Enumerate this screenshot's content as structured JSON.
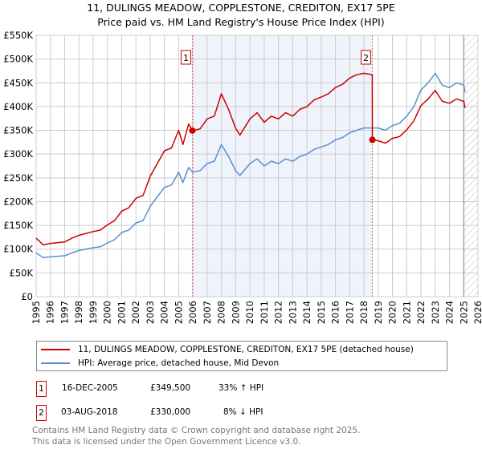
{
  "title": "11, DULINGS MEADOW, COPPLESTONE, CREDITON, EX17 5PE",
  "subtitle": "Price paid vs. HM Land Registry's House Price Index (HPI)",
  "colors": {
    "property": "#cc0000",
    "hpi": "#5b8fd0",
    "shade": "#eef3fc",
    "grid": "#cccccc",
    "marker_line": "#e06060"
  },
  "chart_data": {
    "type": "line",
    "title": "11, DULINGS MEADOW, COPPLESTONE, CREDITON, EX17 5PE",
    "xlabel": "",
    "ylabel": "",
    "xlim": [
      1995,
      2026
    ],
    "ylim": [
      0,
      550000
    ],
    "grid": true,
    "yticks": [
      0,
      50000,
      100000,
      150000,
      200000,
      250000,
      300000,
      350000,
      400000,
      450000,
      500000,
      550000
    ],
    "ytick_labels": [
      "£0",
      "£50K",
      "£100K",
      "£150K",
      "£200K",
      "£250K",
      "£300K",
      "£350K",
      "£400K",
      "£450K",
      "£500K",
      "£550K"
    ],
    "xticks": [
      1995,
      1996,
      1997,
      1998,
      1999,
      2000,
      2001,
      2002,
      2003,
      2004,
      2005,
      2006,
      2007,
      2008,
      2009,
      2010,
      2011,
      2012,
      2013,
      2014,
      2015,
      2016,
      2017,
      2018,
      2019,
      2020,
      2021,
      2022,
      2023,
      2024,
      2025,
      2026
    ],
    "shaded_period": [
      2005.96,
      2018.59
    ],
    "forecast_hatch_from": 2025.0,
    "series": [
      {
        "name": "11, DULINGS MEADOW, COPPLESTONE, CREDITON, EX17 5PE (detached house)",
        "color": "#cc0000",
        "x": [
          1995,
          1995.5,
          1996,
          1997,
          1997.5,
          1998,
          1999,
          1999.5,
          2000,
          2000.5,
          2001,
          2001.5,
          2002,
          2002.5,
          2003,
          2003.5,
          2004,
          2004.5,
          2005,
          2005.3,
          2005.7,
          2005.96,
          2006.5,
          2007,
          2007.5,
          2008,
          2008.5,
          2009,
          2009.3,
          2010,
          2010.5,
          2011,
          2011.5,
          2012,
          2012.5,
          2013,
          2013.5,
          2014,
          2014.5,
          2015,
          2015.5,
          2016,
          2016.5,
          2017,
          2017.5,
          2018,
          2018.58,
          2018.59,
          2019,
          2019.5,
          2020,
          2020.5,
          2021,
          2021.5,
          2022,
          2022.5,
          2023,
          2023.5,
          2024,
          2024.5,
          2025,
          2025.1
        ],
        "y": [
          123000,
          109000,
          112000,
          115000,
          123000,
          129000,
          137000,
          140000,
          151000,
          160000,
          180000,
          187000,
          207000,
          213000,
          253000,
          280000,
          307000,
          313000,
          350000,
          320000,
          363000,
          349500,
          353000,
          374000,
          380000,
          427000,
          394000,
          354000,
          340000,
          374000,
          387000,
          367000,
          380000,
          374000,
          387000,
          380000,
          394000,
          400000,
          414000,
          420000,
          427000,
          440000,
          447000,
          460000,
          467000,
          470000,
          467000,
          330000,
          328000,
          323000,
          333000,
          337000,
          351000,
          370000,
          402000,
          416000,
          434000,
          411000,
          407000,
          416000,
          411000,
          397000
        ]
      },
      {
        "name": "HPI: Average price, detached house, Mid Devon",
        "color": "#5b8fd0",
        "x": [
          1995,
          1995.5,
          1996,
          1997,
          1997.5,
          1998,
          1999,
          1999.5,
          2000,
          2000.5,
          2001,
          2001.5,
          2002,
          2002.5,
          2003,
          2003.5,
          2004,
          2004.5,
          2005,
          2005.3,
          2005.7,
          2005.96,
          2006.5,
          2007,
          2007.5,
          2008,
          2008.5,
          2009,
          2009.3,
          2010,
          2010.5,
          2011,
          2011.5,
          2012,
          2012.5,
          2013,
          2013.5,
          2014,
          2014.5,
          2015,
          2015.5,
          2016,
          2016.5,
          2017,
          2017.5,
          2018,
          2018.58,
          2019,
          2019.5,
          2020,
          2020.5,
          2021,
          2021.5,
          2022,
          2022.5,
          2023,
          2023.5,
          2024,
          2024.5,
          2025,
          2025.1
        ],
        "y": [
          92000,
          82000,
          84000,
          86000,
          92000,
          97000,
          103000,
          105000,
          113000,
          120000,
          135000,
          140000,
          155000,
          160000,
          190000,
          210000,
          230000,
          235000,
          262000,
          240000,
          272000,
          262000,
          265000,
          280000,
          285000,
          320000,
          295000,
          265000,
          255000,
          280000,
          290000,
          275000,
          285000,
          280000,
          290000,
          285000,
          295000,
          300000,
          310000,
          315000,
          320000,
          330000,
          335000,
          345000,
          350000,
          355000,
          355000,
          355000,
          350000,
          360000,
          365000,
          380000,
          400000,
          435000,
          450000,
          470000,
          445000,
          440000,
          450000,
          445000,
          430000
        ]
      }
    ],
    "annotations": [
      {
        "label": "1",
        "x": 2005.96,
        "y": 349500
      },
      {
        "label": "2",
        "x": 2018.59,
        "y": 330000
      }
    ]
  },
  "legend": {
    "property_label": "11, DULINGS MEADOW, COPPLESTONE, CREDITON, EX17 5PE (detached house)",
    "hpi_label": "HPI: Average price, detached house, Mid Devon"
  },
  "transactions": [
    {
      "num": "1",
      "date": "16-DEC-2005",
      "price": "£349,500",
      "hpi": "33% ↑ HPI"
    },
    {
      "num": "2",
      "date": "03-AUG-2018",
      "price": "£330,000",
      "hpi": "8% ↓ HPI"
    }
  ],
  "footer": {
    "line1": "Contains HM Land Registry data © Crown copyright and database right 2025.",
    "line2": "This data is licensed under the Open Government Licence v3.0."
  }
}
